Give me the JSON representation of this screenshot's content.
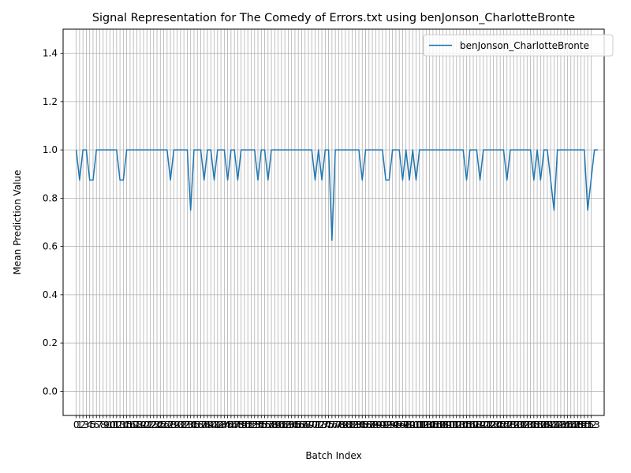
{
  "chart_data": {
    "type": "line",
    "title": "Signal Representation for The Comedy of Errors.txt using benJonson_CharlotteBronte",
    "xlabel": "Batch Index",
    "ylabel": "Mean Prediction Value",
    "xlim": [
      -3.9,
      156.9
    ],
    "ylim": [
      -0.1,
      1.5
    ],
    "grid": true,
    "legend_position": "upper right",
    "y_ticks": [
      0.0,
      0.2,
      0.4,
      0.6,
      0.8,
      1.0,
      1.2,
      1.4
    ],
    "x_ticks_from": 0,
    "x_ticks_to": 153,
    "series": [
      {
        "name": "benJonson_CharlotteBronte",
        "color": "#1f77b4",
        "values": [
          1.0,
          0.875,
          1.0,
          1.0,
          0.875,
          0.875,
          1.0,
          1.0,
          1.0,
          1.0,
          1.0,
          1.0,
          1.0,
          0.875,
          0.875,
          1.0,
          1.0,
          1.0,
          1.0,
          1.0,
          1.0,
          1.0,
          1.0,
          1.0,
          1.0,
          1.0,
          1.0,
          1.0,
          0.875,
          1.0,
          1.0,
          1.0,
          1.0,
          1.0,
          0.75,
          1.0,
          1.0,
          1.0,
          0.875,
          1.0,
          1.0,
          0.875,
          1.0,
          1.0,
          1.0,
          0.875,
          1.0,
          1.0,
          0.875,
          1.0,
          1.0,
          1.0,
          1.0,
          1.0,
          0.875,
          1.0,
          1.0,
          0.875,
          1.0,
          1.0,
          1.0,
          1.0,
          1.0,
          1.0,
          1.0,
          1.0,
          1.0,
          1.0,
          1.0,
          1.0,
          1.0,
          0.875,
          1.0,
          0.875,
          1.0,
          1.0,
          0.625,
          1.0,
          1.0,
          1.0,
          1.0,
          1.0,
          1.0,
          1.0,
          1.0,
          0.875,
          1.0,
          1.0,
          1.0,
          1.0,
          1.0,
          1.0,
          0.875,
          0.875,
          1.0,
          1.0,
          1.0,
          0.875,
          1.0,
          0.875,
          1.0,
          0.875,
          1.0,
          1.0,
          1.0,
          1.0,
          1.0,
          1.0,
          1.0,
          1.0,
          1.0,
          1.0,
          1.0,
          1.0,
          1.0,
          1.0,
          0.875,
          1.0,
          1.0,
          1.0,
          0.875,
          1.0,
          1.0,
          1.0,
          1.0,
          1.0,
          1.0,
          1.0,
          0.875,
          1.0,
          1.0,
          1.0,
          1.0,
          1.0,
          1.0,
          1.0,
          0.875,
          1.0,
          0.875,
          1.0,
          1.0,
          0.875,
          0.75,
          1.0,
          1.0,
          1.0,
          1.0,
          1.0,
          1.0,
          1.0,
          1.0,
          1.0,
          0.75,
          0.875,
          1.0,
          1.0
        ]
      }
    ]
  }
}
